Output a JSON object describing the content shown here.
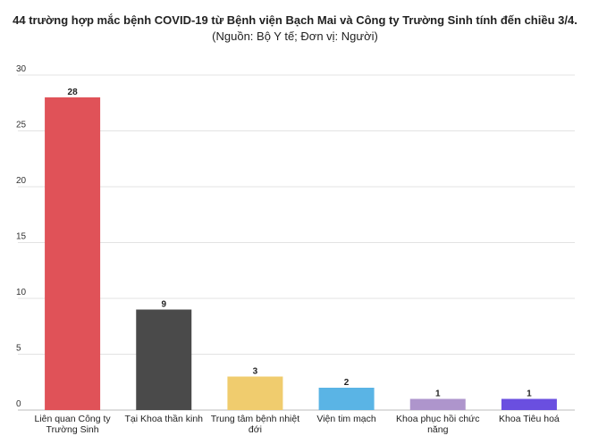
{
  "chart_data": {
    "type": "bar",
    "title": "44 trường hợp mắc bệnh COVID-19 từ Bệnh viện Bạch Mai và Công ty Trường Sinh tính đến chiều 3/4.",
    "subtitle": "(Nguồn: Bộ Y tế; Đơn vị: Người)",
    "categories": [
      [
        "Liên quan Công ty",
        "Trường Sinh"
      ],
      [
        "Tại Khoa thần kinh"
      ],
      [
        "Trung tâm bệnh nhiệt",
        "đới"
      ],
      [
        "Viện tim mạch"
      ],
      [
        "Khoa phục hồi chức",
        "năng"
      ],
      [
        "Khoa Tiêu hoá"
      ]
    ],
    "values": [
      28,
      9,
      3,
      2,
      1,
      1
    ],
    "colors": [
      "#e05258",
      "#4a4a4a",
      "#f0cc6e",
      "#5ab4e5",
      "#ae95cc",
      "#6a4fe0"
    ],
    "ylim": [
      0,
      30
    ],
    "yticks": [
      0,
      5,
      10,
      15,
      20,
      25,
      30
    ],
    "grid": true
  }
}
